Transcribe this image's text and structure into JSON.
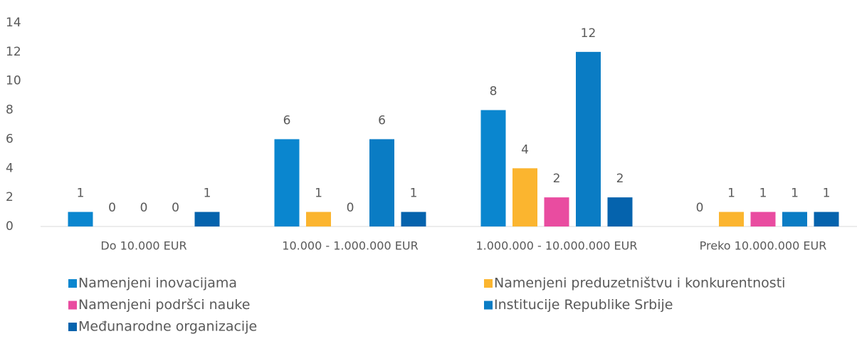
{
  "chart_data": {
    "type": "bar",
    "categories": [
      "Do 10.000 EUR",
      "10.000 - 1.000.000 EUR",
      "1.000.000 - 10.000.000 EUR",
      "Preko 10.000.000 EUR"
    ],
    "series": [
      {
        "name": "Namenjeni inovacijama",
        "color": "#0a86cf",
        "values": [
          1,
          6,
          8,
          0
        ]
      },
      {
        "name": "Namenjeni preduzetništvu i konkurentnosti",
        "color": "#fbb52f",
        "values": [
          0,
          1,
          4,
          1
        ]
      },
      {
        "name": "Namenjeni podršci nauke",
        "color": "#e94ca0",
        "values": [
          0,
          0,
          2,
          1
        ]
      },
      {
        "name": "Institucije Republike Srbije",
        "color": "#0a7cc4",
        "values": [
          0,
          6,
          12,
          1
        ]
      },
      {
        "name": "Međunarodne organizacije",
        "color": "#0563ad",
        "values": [
          1,
          1,
          2,
          1
        ]
      }
    ],
    "ylim": [
      0,
      14
    ],
    "yticks": [
      0,
      2,
      4,
      6,
      8,
      10,
      12,
      14
    ],
    "grid": false,
    "legend": "bottom"
  }
}
